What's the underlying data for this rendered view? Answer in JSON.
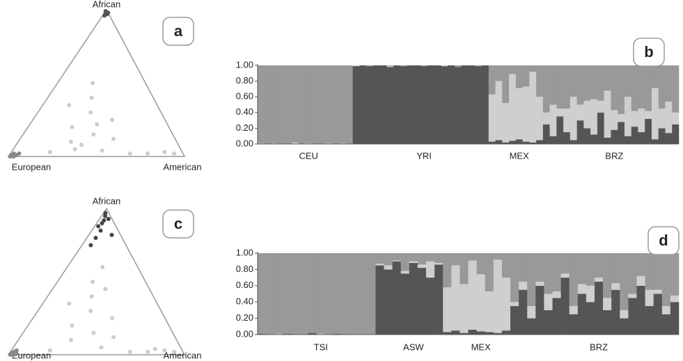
{
  "chart_data": [
    {
      "type": "ternary",
      "panel_label": "a",
      "top_label": "African",
      "left_label": "European",
      "right_label": "American",
      "series": [
        {
          "color": "#555555",
          "values": [
            [
              0.98,
              0.01,
              0.01
            ],
            [
              0.97,
              0.02,
              0.01
            ],
            [
              0.99,
              0.01,
              0
            ],
            [
              0.96,
              0.03,
              0.01
            ],
            [
              0.98,
              0,
              0.02
            ],
            [
              0.97,
              0.01,
              0.02
            ]
          ]
        },
        {
          "color": "#8a8a8a",
          "values": [
            [
              0.01,
              0.98,
              0.01
            ],
            [
              0.02,
              0.96,
              0.02
            ],
            [
              0,
              0.97,
              0.03
            ],
            [
              0.01,
              0.95,
              0.04
            ],
            [
              0.02,
              0.93,
              0.05
            ],
            [
              0,
              0.99,
              0.01
            ]
          ]
        },
        {
          "color": "#cccccc",
          "values": [
            [
              0.05,
              0.6,
              0.35
            ],
            [
              0.02,
              0.3,
              0.68
            ],
            [
              0.03,
              0.1,
              0.87
            ],
            [
              0.02,
              0.05,
              0.93
            ],
            [
              0.04,
              0.45,
              0.51
            ],
            [
              0.3,
              0.4,
              0.3
            ],
            [
              0.2,
              0.55,
              0.25
            ],
            [
              0.4,
              0.35,
              0.25
            ],
            [
              0.15,
              0.45,
              0.4
            ],
            [
              0.25,
              0.3,
              0.45
            ],
            [
              0.1,
              0.6,
              0.3
            ],
            [
              0.5,
              0.3,
              0.2
            ],
            [
              0.35,
              0.5,
              0.15
            ],
            [
              0.08,
              0.55,
              0.37
            ],
            [
              0.12,
              0.35,
              0.53
            ],
            [
              0.02,
              0.2,
              0.78
            ],
            [
              0.03,
              0.75,
              0.22
            ],
            [
              0.22,
              0.4,
              0.38
            ]
          ]
        }
      ]
    },
    {
      "type": "admixture",
      "panel_label": "b",
      "ylim": [
        0,
        1
      ],
      "yticks": [
        {
          "value": 0,
          "label": "0.00"
        },
        {
          "value": 0.2,
          "label": "0.20"
        },
        {
          "value": 0.4,
          "label": "0.40"
        },
        {
          "value": 0.6,
          "label": "0.60"
        },
        {
          "value": 0.8,
          "label": "0.80"
        },
        {
          "value": 1,
          "label": "1.00"
        }
      ],
      "categories": [
        null,
        null,
        null,
        null,
        null,
        null,
        null,
        "CEU",
        null,
        null,
        null,
        null,
        null,
        null,
        null,
        null,
        null,
        null,
        null,
        null,
        null,
        null,
        null,
        null,
        "YRI",
        null,
        null,
        null,
        null,
        null,
        null,
        null,
        null,
        null,
        null,
        null,
        null,
        null,
        "MEX",
        null,
        null,
        null,
        null,
        null,
        null,
        null,
        null,
        null,
        null,
        null,
        null,
        null,
        "BRZ",
        null,
        null,
        null,
        null,
        null,
        null,
        null,
        null,
        null
      ],
      "series": [
        {
          "color": "#555555",
          "values": [
            0,
            0,
            0,
            0,
            0,
            0,
            0,
            0,
            0,
            0,
            0,
            0,
            0,
            0,
            0.99,
            1,
            0.99,
            1,
            1,
            0.98,
            1,
            0.99,
            1,
            1,
            0.99,
            1,
            1,
            0.99,
            1,
            0.98,
            1,
            1,
            0.99,
            1,
            0.03,
            0.05,
            0.02,
            0.04,
            0.06,
            0.03,
            0.02,
            0.05,
            0.25,
            0.1,
            0.35,
            0.15,
            0.05,
            0.3,
            0.2,
            0.12,
            0.4,
            0.08,
            0.18,
            0.28,
            0.1,
            0.22,
            0.15,
            0.32,
            0.06,
            0.2,
            0.14,
            0.25
          ]
        },
        {
          "color": "#cfcfcf",
          "values": [
            0.01,
            0,
            0.01,
            0,
            0,
            0.02,
            0,
            0.01,
            0,
            0,
            0.01,
            0,
            0.01,
            0,
            0.01,
            0,
            0,
            0,
            0,
            0.01,
            0,
            0,
            0,
            0,
            0,
            0,
            0,
            0.01,
            0,
            0,
            0,
            0,
            0,
            0,
            0.6,
            0.75,
            0.5,
            0.85,
            0.65,
            0.7,
            0.9,
            0.55,
            0.15,
            0.4,
            0.1,
            0.3,
            0.55,
            0.2,
            0.35,
            0.45,
            0.15,
            0.6,
            0.25,
            0.1,
            0.5,
            0.2,
            0.3,
            0.1,
            0.65,
            0.25,
            0.4,
            0.15
          ]
        },
        {
          "color": "#999999",
          "values": [
            0.99,
            1,
            0.99,
            1,
            1,
            0.98,
            1,
            0.99,
            1,
            1,
            0.99,
            1,
            0.99,
            1,
            0,
            0,
            0.01,
            0,
            0,
            0.01,
            0,
            0.01,
            0,
            0,
            0.01,
            0,
            0,
            0,
            0,
            0.02,
            0,
            0,
            0.01,
            0,
            0.37,
            0.2,
            0.48,
            0.11,
            0.29,
            0.27,
            0.08,
            0.4,
            0.6,
            0.5,
            0.55,
            0.55,
            0.4,
            0.5,
            0.45,
            0.43,
            0.45,
            0.32,
            0.57,
            0.62,
            0.4,
            0.58,
            0.55,
            0.58,
            0.29,
            0.55,
            0.46,
            0.6
          ]
        }
      ]
    },
    {
      "type": "ternary",
      "panel_label": "c",
      "top_label": "African",
      "left_label": "European",
      "right_label": "American",
      "series": [
        {
          "color": "#444444",
          "values": [
            [
              0.95,
              0.03,
              0.02
            ],
            [
              0.9,
              0.07,
              0.03
            ],
            [
              0.85,
              0.1,
              0.05
            ],
            [
              0.8,
              0.15,
              0.05
            ],
            [
              0.82,
              0.05,
              0.13
            ],
            [
              0.93,
              0.02,
              0.05
            ],
            [
              0.88,
              0.1,
              0.02
            ],
            [
              0.97,
              0.02,
              0.01
            ],
            [
              0.75,
              0.2,
              0.05
            ],
            [
              0.92,
              0.05,
              0.03
            ]
          ]
        },
        {
          "color": "#8a8a8a",
          "values": [
            [
              0.01,
              0.98,
              0.01
            ],
            [
              0.02,
              0.96,
              0.02
            ],
            [
              0,
              0.97,
              0.03
            ],
            [
              0.01,
              0.95,
              0.04
            ],
            [
              0.03,
              0.94,
              0.03
            ],
            [
              0,
              0.99,
              0.01
            ]
          ]
        },
        {
          "color": "#cccccc",
          "values": [
            [
              0.03,
              0.1,
              0.87
            ],
            [
              0.02,
              0.05,
              0.93
            ],
            [
              0.04,
              0.15,
              0.81
            ],
            [
              0.02,
              0.3,
              0.68
            ],
            [
              0.05,
              0.45,
              0.5
            ],
            [
              0.3,
              0.4,
              0.3
            ],
            [
              0.2,
              0.55,
              0.25
            ],
            [
              0.4,
              0.35,
              0.25
            ],
            [
              0.15,
              0.45,
              0.4
            ],
            [
              0.25,
              0.3,
              0.45
            ],
            [
              0.1,
              0.6,
              0.3
            ],
            [
              0.5,
              0.3,
              0.2
            ],
            [
              0.35,
              0.5,
              0.15
            ],
            [
              0.6,
              0.2,
              0.2
            ],
            [
              0.12,
              0.35,
              0.53
            ],
            [
              0.02,
              0.2,
              0.78
            ],
            [
              0.03,
              0.75,
              0.22
            ],
            [
              0.45,
              0.25,
              0.3
            ]
          ]
        }
      ]
    },
    {
      "type": "admixture",
      "panel_label": "d",
      "ylim": [
        0,
        1
      ],
      "yticks": [
        {
          "value": 0,
          "label": "0.00"
        },
        {
          "value": 0.2,
          "label": "0.20"
        },
        {
          "value": 0.4,
          "label": "0.40"
        },
        {
          "value": 0.6,
          "label": "0.60"
        },
        {
          "value": 0.8,
          "label": "0.80"
        },
        {
          "value": 1,
          "label": "1.00"
        }
      ],
      "categories": [
        null,
        null,
        null,
        null,
        null,
        null,
        null,
        "TSI",
        null,
        null,
        null,
        null,
        null,
        null,
        null,
        null,
        null,
        null,
        "ASW",
        null,
        null,
        null,
        null,
        null,
        null,
        null,
        "MEX",
        null,
        null,
        null,
        null,
        null,
        null,
        null,
        null,
        null,
        null,
        null,
        null,
        null,
        "BRZ",
        null,
        null,
        null,
        null,
        null,
        null,
        null,
        null,
        null
      ],
      "series": [
        {
          "color": "#555555",
          "values": [
            0.01,
            0,
            0,
            0.01,
            0,
            0,
            0.02,
            0,
            0,
            0.01,
            0,
            0,
            0,
            0,
            0.85,
            0.8,
            0.9,
            0.75,
            0.88,
            0.82,
            0.7,
            0.86,
            0.03,
            0.05,
            0.02,
            0.06,
            0.04,
            0.03,
            0.02,
            0.05,
            0.35,
            0.55,
            0.2,
            0.6,
            0.3,
            0.45,
            0.7,
            0.25,
            0.5,
            0.4,
            0.65,
            0.3,
            0.55,
            0.2,
            0.45,
            0.6,
            0.35,
            0.5,
            0.25,
            0.4
          ]
        },
        {
          "color": "#cfcfcf",
          "values": [
            0,
            0,
            0.01,
            0,
            0,
            0,
            0,
            0.01,
            0,
            0,
            0,
            0,
            0,
            0,
            0.02,
            0.05,
            0.01,
            0.03,
            0.02,
            0.04,
            0.2,
            0.02,
            0.55,
            0.8,
            0.6,
            0.85,
            0.7,
            0.5,
            0.9,
            0.65,
            0.05,
            0.1,
            0.15,
            0.05,
            0.2,
            0.08,
            0.05,
            0.1,
            0.12,
            0.2,
            0.05,
            0.15,
            0.08,
            0.1,
            0.05,
            0.12,
            0.2,
            0.05,
            0.1,
            0.08
          ]
        },
        {
          "color": "#999999",
          "values": [
            0.99,
            1,
            0.99,
            0.99,
            1,
            1,
            0.98,
            0.99,
            1,
            0.99,
            1,
            1,
            1,
            1,
            0.13,
            0.15,
            0.09,
            0.22,
            0.1,
            0.14,
            0.1,
            0.12,
            0.42,
            0.15,
            0.38,
            0.09,
            0.26,
            0.47,
            0.08,
            0.3,
            0.6,
            0.35,
            0.65,
            0.35,
            0.5,
            0.47,
            0.25,
            0.65,
            0.38,
            0.4,
            0.3,
            0.55,
            0.37,
            0.7,
            0.5,
            0.28,
            0.45,
            0.45,
            0.65,
            0.52
          ]
        }
      ]
    }
  ]
}
